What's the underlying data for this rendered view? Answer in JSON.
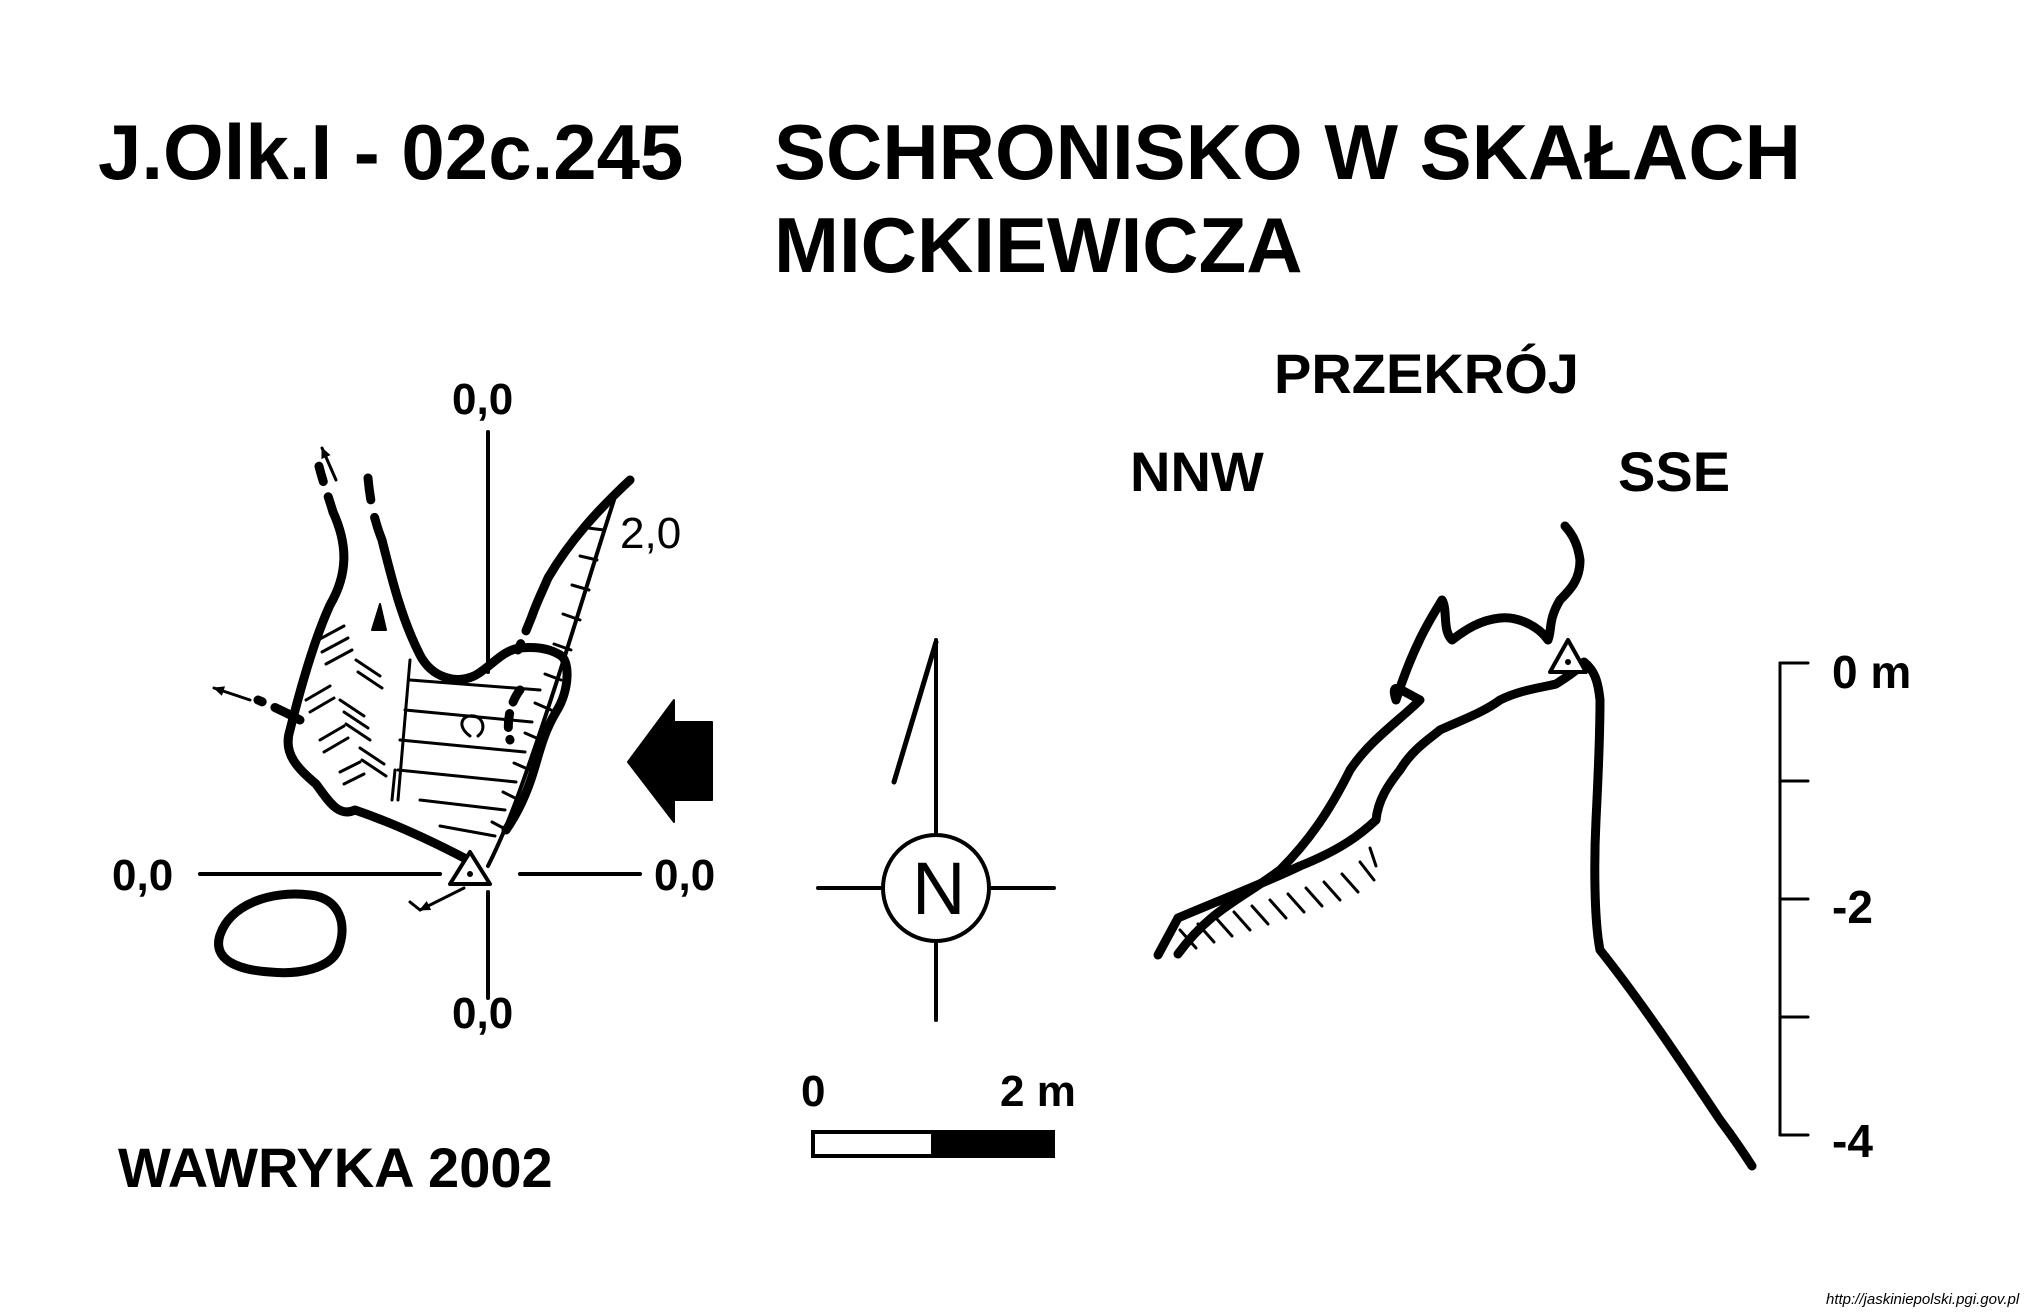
{
  "title": {
    "code": "J.Olk.I - 02c.245",
    "name_line1": "SCHRONISKO W SKAŁACH",
    "name_line2": "MICKIEWICZA"
  },
  "plan": {
    "top_label": "0,0",
    "left_label": "0,0",
    "right_label": "0,0",
    "bottom_label": "0,0",
    "depth_label": "2,0"
  },
  "compass": {
    "letter": "N"
  },
  "scale_bar": {
    "start_label": "0",
    "end_label": "2 m"
  },
  "section": {
    "title": "PRZEKRÓJ",
    "left_dir": "NNW",
    "right_dir": "SSE",
    "depth_ticks": [
      "0 m",
      "-2",
      "-4"
    ]
  },
  "author": "WAWRYKA 2002",
  "source_url": "http://jaskiniepolski.pgi.gov.pl"
}
